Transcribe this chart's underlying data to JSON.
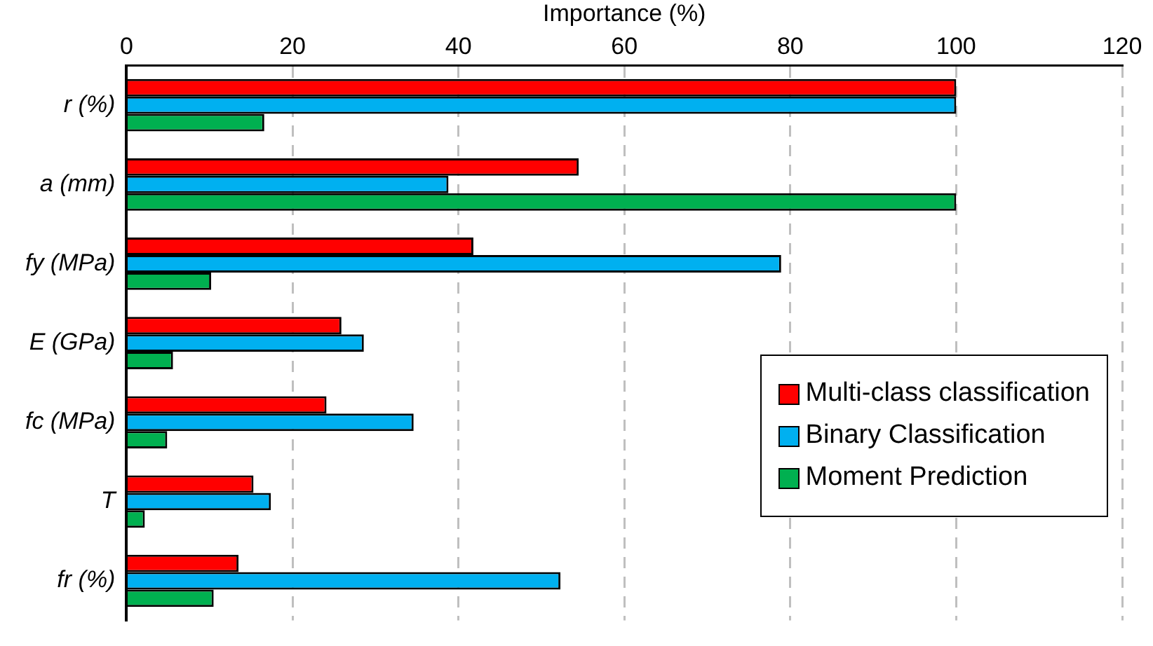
{
  "chart_data": {
    "type": "bar",
    "orientation": "horizontal",
    "xlabel": "Importance (%)",
    "categories": [
      "r (%)",
      "a (mm)",
      "fy (MPa)",
      "E (GPa)",
      "fc (MPa)",
      "T",
      "fr (%)"
    ],
    "series": [
      {
        "name": "Multi-class classification",
        "color": "#ff0000",
        "values": [
          100,
          54.5,
          41.8,
          25.9,
          24.1,
          15.3,
          13.5
        ]
      },
      {
        "name": "Binary Classification",
        "color": "#00b0f0",
        "values": [
          100,
          38.8,
          78.9,
          28.6,
          34.6,
          17.4,
          52.3
        ]
      },
      {
        "name": "Moment Prediction",
        "color": "#00b050",
        "values": [
          16.6,
          100,
          10.2,
          5.6,
          4.9,
          2.2,
          10.5
        ]
      }
    ],
    "xlim": [
      0,
      120
    ],
    "xticks": [
      0,
      20,
      40,
      60,
      80,
      100,
      120
    ],
    "grid": "x",
    "legend": "bottom right"
  }
}
